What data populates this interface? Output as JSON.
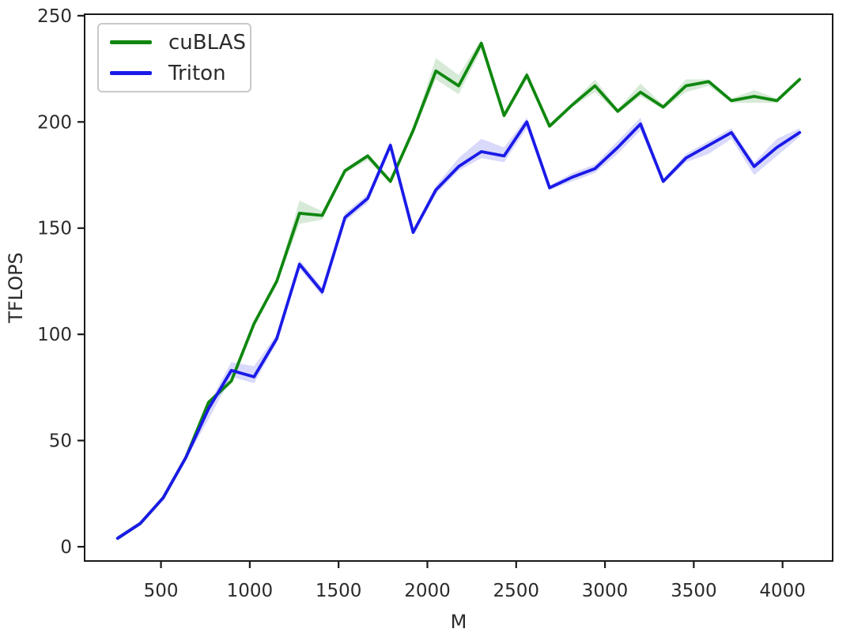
{
  "figure": {
    "background": "#ffffff"
  },
  "chart_data": {
    "type": "line",
    "title": "",
    "xlabel": "M",
    "ylabel": "TFLOPS",
    "xlim": [
      70,
      4282
    ],
    "ylim": [
      -6.7,
      250.7
    ],
    "xticks": [
      500,
      1000,
      1500,
      2000,
      2500,
      3000,
      3500,
      4000
    ],
    "yticks": [
      0,
      50,
      100,
      150,
      200,
      250
    ],
    "grid": false,
    "legend_position": "upper-left",
    "axis_color": "#1a1a1a",
    "tick_label_color": "#2b2b2b",
    "x": [
      256,
      384,
      512,
      640,
      768,
      896,
      1024,
      1152,
      1280,
      1408,
      1536,
      1664,
      1792,
      1920,
      2048,
      2176,
      2304,
      2432,
      2560,
      2688,
      2816,
      2944,
      3072,
      3200,
      3328,
      3456,
      3584,
      3712,
      3840,
      3968,
      4096
    ],
    "series": [
      {
        "name": "cuBLAS",
        "color": "#0f870f",
        "band_color": "rgba(34,139,34,0.18)",
        "values": [
          4,
          11,
          23,
          42,
          68,
          78,
          105,
          125,
          157,
          156,
          177,
          184,
          172,
          196,
          224,
          217,
          237,
          203,
          222,
          198,
          208,
          217,
          205,
          214,
          207,
          217,
          219,
          210,
          212,
          210,
          220
        ],
        "band_low": [
          3,
          10,
          22,
          41,
          66,
          77,
          104,
          124,
          152,
          154,
          176,
          182,
          171,
          195,
          220,
          213,
          234,
          202,
          220,
          197,
          207,
          214,
          204,
          212,
          206,
          214,
          217,
          209,
          209,
          209,
          219
        ],
        "band_high": [
          5,
          12,
          24,
          43,
          69,
          79,
          106,
          126,
          163,
          158,
          178,
          185,
          173,
          197,
          230,
          222,
          239,
          204,
          224,
          199,
          209,
          220,
          206,
          218,
          208,
          220,
          220,
          211,
          215,
          211,
          221
        ]
      },
      {
        "name": "Triton",
        "color": "#1a1ae8",
        "band_color": "rgba(64,64,235,0.20)",
        "values": [
          4,
          11,
          23,
          42,
          65,
          83,
          80,
          98,
          133,
          120,
          155,
          164,
          189,
          148,
          168,
          179,
          186,
          184,
          200,
          169,
          174,
          178,
          188,
          199,
          172,
          183,
          189,
          195,
          179,
          188,
          195
        ],
        "band_low": [
          3,
          10,
          22,
          41,
          60,
          80,
          77,
          96,
          131,
          118,
          153,
          162,
          187,
          147,
          166,
          177,
          183,
          181,
          197,
          168,
          172,
          176,
          185,
          196,
          171,
          181,
          185,
          192,
          175,
          184,
          193
        ],
        "band_high": [
          5,
          12,
          24,
          43,
          67,
          87,
          85,
          100,
          135,
          122,
          157,
          166,
          191,
          149,
          170,
          183,
          192,
          188,
          202,
          170,
          176,
          180,
          191,
          202,
          173,
          185,
          191,
          197,
          181,
          192,
          197
        ]
      }
    ]
  }
}
